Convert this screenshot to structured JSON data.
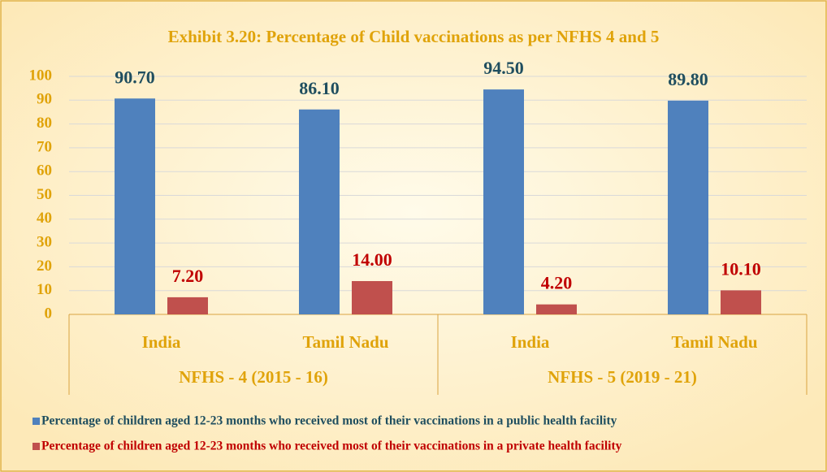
{
  "chart_data": {
    "type": "bar",
    "title": "Exhibit 3.20: Percentage of Child vaccinations as per NFHS 4 and 5",
    "groups": [
      {
        "label": "NFHS - 4 (2015 - 16)",
        "categories": [
          "India",
          "Tamil Nadu"
        ]
      },
      {
        "label": "NFHS - 5 (2019 - 21)",
        "categories": [
          "India",
          "Tamil Nadu"
        ]
      }
    ],
    "series": [
      {
        "name": "Percentage of children aged 12-23 months who received most of their vaccinations in a public health facility",
        "color": "#4f81bd",
        "label_color": "#1f4e5f",
        "values": [
          90.7,
          86.1,
          94.5,
          89.8
        ],
        "value_labels": [
          "90.70",
          "86.10",
          "94.50",
          "89.80"
        ]
      },
      {
        "name": "Percentage of children aged 12-23 months who received most of their vaccinations in a private health facility",
        "color": "#c0504d",
        "label_color": "#c00000",
        "values": [
          7.2,
          14.0,
          4.2,
          10.1
        ],
        "value_labels": [
          "7.20",
          "14.00",
          "4.20",
          "10.10"
        ]
      }
    ],
    "ylim": [
      0,
      100
    ],
    "yticks": [
      0,
      10,
      20,
      30,
      40,
      50,
      60,
      70,
      80,
      90,
      100
    ],
    "grid": true
  }
}
